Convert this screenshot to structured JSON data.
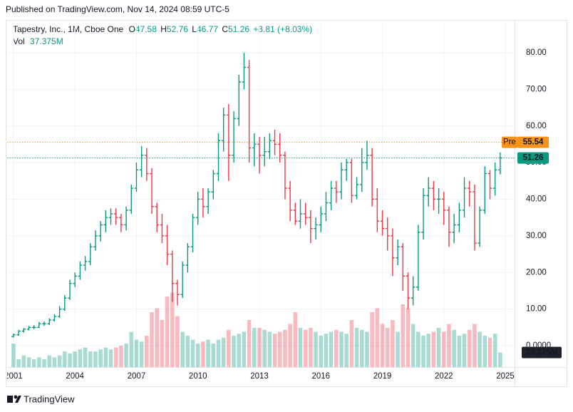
{
  "header": {
    "published": "Published on TradingView.com, Nov 14, 2024 08:59 UTC-5",
    "symbol": "Tapestry, Inc., 1M, Cboe One",
    "quote": [
      {
        "key": "O",
        "value": "47.58"
      },
      {
        "key": "H",
        "value": "52.76"
      },
      {
        "key": "L",
        "value": "46.77"
      },
      {
        "key": "C",
        "value": "51.26"
      }
    ],
    "change": "+3.81 (+8.03%)",
    "vol_key": "Vol",
    "vol_value": "37.375M"
  },
  "footer": {
    "brand": "TradingView"
  },
  "chart_data": {
    "type": "ohlc",
    "up_color": "#089981",
    "down_color": "#f23645",
    "xlim": [
      2000.69,
      2025.45
    ],
    "xticks": [
      2001,
      2004,
      2007,
      2010,
      2013,
      2016,
      2019,
      2022,
      2025
    ],
    "ylim": [
      -5.84,
      88.56
    ],
    "yticks": [
      {
        "value": 0,
        "label": "0.0000"
      },
      {
        "value": 10,
        "label": "10.00"
      },
      {
        "value": 20,
        "label": "20.00"
      },
      {
        "value": 30,
        "label": "30.00"
      },
      {
        "value": 40,
        "label": "40.00"
      },
      {
        "value": 50,
        "label": "50.00"
      },
      {
        "value": 60,
        "label": "60.00"
      },
      {
        "value": 70,
        "label": "70.00"
      },
      {
        "value": 80,
        "label": "80.00"
      }
    ],
    "grid": true,
    "volume_lim": [
      0,
      200
    ],
    "x": [
      2001,
      2001.25,
      2001.5,
      2001.75,
      2002,
      2002.25,
      2002.5,
      2002.75,
      2003,
      2003.25,
      2003.5,
      2003.75,
      2004,
      2004.25,
      2004.5,
      2004.75,
      2005,
      2005.25,
      2005.5,
      2005.75,
      2006,
      2006.25,
      2006.5,
      2006.75,
      2007,
      2007.25,
      2007.5,
      2007.75,
      2008,
      2008.25,
      2008.5,
      2008.75,
      2009,
      2009.25,
      2009.5,
      2009.75,
      2010,
      2010.25,
      2010.5,
      2010.75,
      2011,
      2011.25,
      2011.5,
      2011.75,
      2012,
      2012.25,
      2012.5,
      2012.75,
      2013,
      2013.25,
      2013.5,
      2013.75,
      2014,
      2014.25,
      2014.5,
      2014.75,
      2015,
      2015.25,
      2015.5,
      2015.75,
      2016,
      2016.25,
      2016.5,
      2016.75,
      2017,
      2017.25,
      2017.5,
      2017.75,
      2018,
      2018.25,
      2018.5,
      2018.75,
      2019,
      2019.25,
      2019.5,
      2019.75,
      2020,
      2020.25,
      2020.5,
      2020.75,
      2021,
      2021.25,
      2021.5,
      2021.75,
      2022,
      2022.25,
      2022.5,
      2022.75,
      2023,
      2023.25,
      2023.5,
      2023.75,
      2024,
      2024.25,
      2024.5,
      2024.75
    ],
    "open": [
      2.5,
      3,
      4,
      4.5,
      5,
      5,
      6,
      6,
      7,
      8,
      10,
      13,
      17,
      19,
      22,
      23,
      27,
      30,
      33,
      35,
      36,
      35,
      33,
      37,
      43,
      48,
      52,
      47,
      38,
      33,
      30,
      25,
      17,
      14,
      22,
      27,
      35,
      40,
      38,
      42,
      47,
      56,
      63,
      52,
      62,
      72,
      76,
      54,
      55,
      52,
      53,
      56,
      55,
      52,
      43,
      37,
      34,
      36,
      35,
      32,
      33,
      36,
      39,
      43,
      42,
      48,
      50,
      41,
      44,
      50,
      52,
      40,
      34,
      32,
      30,
      24,
      27,
      19,
      13,
      16,
      31,
      41,
      43,
      40,
      40,
      37,
      31,
      33,
      37,
      43,
      42,
      28,
      37,
      47,
      43,
      48
    ],
    "high": [
      3.3,
      4.3,
      4.8,
      5.4,
      5.6,
      6.5,
      6.6,
      7.5,
      8.6,
      10.8,
      13.8,
      18,
      20,
      23,
      24.5,
      28,
      31.5,
      34,
      37,
      37.5,
      37.5,
      36,
      38,
      44,
      50,
      54.5,
      54,
      48.5,
      39,
      36,
      33,
      26,
      18,
      23,
      28,
      36,
      42,
      43,
      43,
      48,
      58,
      65,
      66,
      64,
      74,
      80,
      78,
      58,
      57,
      57,
      58,
      59,
      58,
      53,
      45,
      39,
      40,
      39,
      37,
      35,
      38,
      42,
      45,
      45,
      50,
      51,
      51,
      46,
      54,
      56,
      54,
      43,
      37,
      35,
      32,
      29,
      28,
      20,
      19,
      33,
      43,
      46,
      45,
      43,
      42,
      38,
      36,
      39,
      46,
      45,
      44,
      38,
      49,
      48,
      50,
      52.76
    ],
    "low": [
      2.2,
      2.7,
      3.6,
      4.2,
      4.5,
      4.8,
      5.4,
      5.6,
      6.6,
      7.6,
      9.5,
      12.5,
      16,
      18,
      20.5,
      22,
      26,
      28.5,
      31,
      33,
      33,
      31,
      31.5,
      36,
      42,
      46,
      45,
      36,
      31,
      28,
      22,
      12,
      11,
      13,
      20,
      25.5,
      33,
      35,
      36,
      40,
      45,
      53,
      45,
      50,
      60,
      70,
      50,
      49,
      47,
      49,
      51,
      52,
      50,
      40,
      34,
      33,
      32,
      33,
      28,
      29,
      31,
      34,
      37,
      39,
      40,
      45,
      39,
      40,
      42,
      48,
      38,
      31,
      30,
      26,
      19,
      22,
      15,
      10,
      11,
      15,
      29,
      38,
      37,
      36,
      33,
      27,
      28,
      31,
      35,
      38,
      26,
      27,
      36,
      40,
      41,
      46.77
    ],
    "close": [
      3,
      4,
      4.5,
      5,
      5,
      6,
      6,
      7,
      8,
      10,
      13,
      17,
      19,
      22,
      23,
      27,
      30,
      33,
      35,
      36,
      35,
      33,
      37,
      43,
      48,
      52,
      47,
      38,
      33,
      30,
      25,
      17,
      14,
      22,
      27,
      35,
      40,
      38,
      42,
      47,
      56,
      63,
      52,
      62,
      72,
      76,
      54,
      55,
      52,
      53,
      56,
      55,
      52,
      43,
      37,
      34,
      36,
      35,
      32,
      33,
      36,
      39,
      43,
      42,
      48,
      50,
      41,
      44,
      50,
      52,
      40,
      34,
      32,
      30,
      24,
      27,
      19,
      13,
      16,
      31,
      41,
      43,
      40,
      40,
      37,
      31,
      33,
      37,
      43,
      42,
      28,
      37,
      47,
      43,
      48,
      51.26
    ],
    "volume": [
      60,
      20,
      30,
      25,
      20,
      25,
      20,
      30,
      25,
      30,
      40,
      35,
      40,
      45,
      50,
      40,
      40,
      45,
      50,
      45,
      50,
      55,
      60,
      90,
      70,
      65,
      80,
      140,
      150,
      120,
      180,
      190,
      130,
      90,
      80,
      70,
      60,
      65,
      70,
      60,
      70,
      75,
      95,
      80,
      85,
      90,
      120,
      100,
      100,
      95,
      90,
      85,
      90,
      95,
      110,
      140,
      100,
      95,
      100,
      90,
      80,
      85,
      90,
      95,
      90,
      85,
      120,
      100,
      95,
      90,
      140,
      150,
      110,
      100,
      120,
      90,
      160,
      150,
      110,
      90,
      80,
      85,
      90,
      100,
      90,
      110,
      95,
      80,
      85,
      95,
      110,
      90,
      80,
      75,
      85,
      37.375
    ],
    "volume_last_label": "37.375M",
    "price_lines": [
      {
        "label": "Pre",
        "value": 55.54,
        "color": "#f7931a"
      },
      {
        "value": 51.26,
        "color": "#089981"
      }
    ]
  }
}
